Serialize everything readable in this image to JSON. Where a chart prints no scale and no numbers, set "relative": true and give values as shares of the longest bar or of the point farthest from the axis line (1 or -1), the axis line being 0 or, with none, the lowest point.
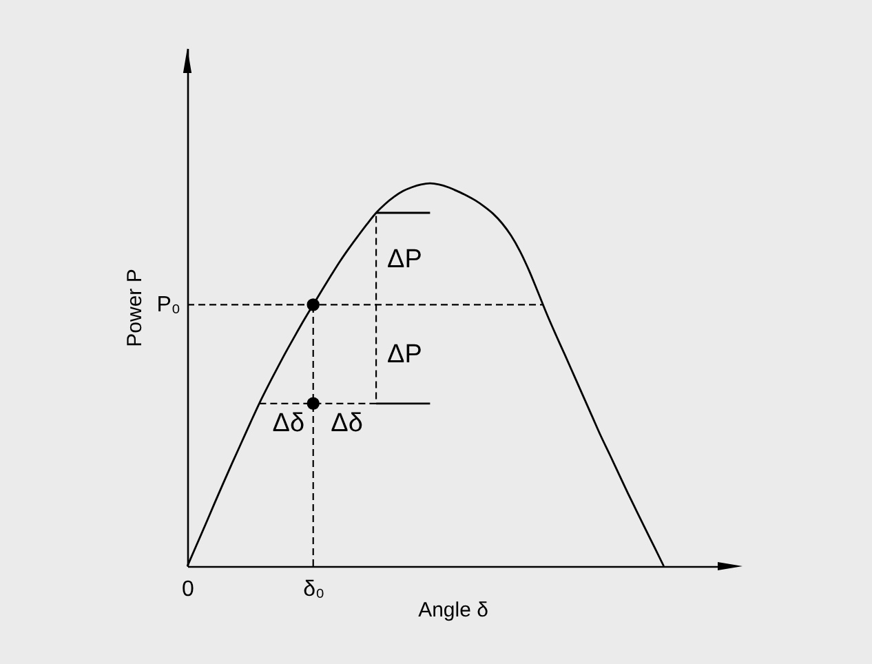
{
  "chart_data": {
    "type": "line",
    "xlabel": "Angle δ",
    "ylabel": "Power P",
    "relative": true,
    "categories": [
      "0",
      null,
      null,
      null,
      null,
      null,
      null,
      null,
      null,
      null,
      null,
      null,
      null,
      null,
      "δ₀",
      null,
      null,
      null,
      null,
      null,
      null,
      null,
      null,
      null,
      null,
      null,
      null,
      null,
      null,
      null,
      null,
      null,
      null,
      null,
      null,
      null,
      null,
      null,
      null,
      null,
      null,
      null,
      null,
      null,
      null,
      null,
      null,
      null,
      null,
      null,
      null,
      null,
      null,
      null,
      null,
      null,
      null,
      null,
      null,
      null
    ],
    "series": [
      {
        "color": "#000000",
        "values": [
          0,
          0.054,
          0.108,
          0.163,
          0.217,
          0.27,
          0.322,
          0.374,
          0.425,
          0.472,
          0.517,
          0.561,
          0.603,
          0.644,
          0.683,
          0.722,
          0.76,
          0.797,
          0.831,
          0.863,
          0.894,
          0.923,
          0.946,
          0.965,
          0.98,
          0.99,
          0.997,
          1,
          0.997,
          0.99,
          0.98,
          0.969,
          0.956,
          0.94,
          0.921,
          0.896,
          0.864,
          0.823,
          0.773,
          0.716,
          0.658,
          0.604,
          0.552,
          0.499,
          0.446,
          0.393,
          0.34,
          0.291,
          0.241,
          0.191,
          0.143,
          0.095,
          0.048,
          0,
          null,
          null,
          null,
          null,
          null,
          null
        ]
      },
      {
        "type": "step",
        "line_style": "dashed",
        "color": "#000000",
        "values": [
          null,
          null,
          null,
          null,
          null,
          null,
          null,
          null,
          0.425,
          0.425,
          0.425,
          0.425,
          0.425,
          0.425,
          0.425,
          0.425,
          0.425,
          0.425,
          0.425,
          0.425,
          0.425,
          0.923,
          null,
          null,
          null,
          null,
          null,
          null,
          null,
          null,
          null,
          null,
          null,
          null,
          null,
          null,
          null,
          null,
          null,
          null,
          null,
          null,
          null,
          null,
          null,
          null,
          null,
          null,
          null,
          null,
          null,
          null,
          null,
          null,
          null,
          null,
          null,
          null,
          null,
          null
        ]
      },
      {
        "type": "line",
        "color": "#000000",
        "values": [
          null,
          null,
          null,
          null,
          null,
          null,
          null,
          null,
          null,
          null,
          null,
          null,
          null,
          null,
          null,
          null,
          null,
          null,
          null,
          null,
          null,
          0.923,
          0.923,
          0.923,
          0.923,
          0.923,
          0.923,
          0.923,
          null,
          null,
          null,
          null,
          null,
          null,
          null,
          null,
          null,
          null,
          null,
          null,
          null,
          null,
          null,
          null,
          null,
          null,
          null,
          null,
          null,
          null,
          null,
          null,
          null,
          null,
          null,
          null,
          null,
          null,
          null,
          null
        ]
      },
      {
        "type": "line",
        "color": "#000000",
        "values": [
          null,
          null,
          null,
          null,
          null,
          null,
          null,
          null,
          null,
          null,
          null,
          null,
          null,
          null,
          null,
          null,
          null,
          null,
          null,
          null,
          null,
          0.425,
          0.425,
          0.425,
          0.425,
          0.425,
          0.425,
          0.425,
          null,
          null,
          null,
          null,
          null,
          null,
          null,
          null,
          null,
          null,
          null,
          null,
          null,
          null,
          null,
          null,
          null,
          null,
          null,
          null,
          null,
          null,
          null,
          null,
          null,
          null,
          null,
          null,
          null,
          null,
          null,
          null
        ]
      },
      {
        "type": "lollipop",
        "marker": "circle",
        "line_style": "dashed",
        "color": "#000000",
        "values": [
          null,
          null,
          null,
          null,
          null,
          null,
          null,
          null,
          null,
          null,
          null,
          null,
          null,
          null,
          0.683,
          null,
          null,
          null,
          null,
          null,
          null,
          null,
          null,
          null,
          null,
          null,
          null,
          null,
          null,
          null,
          null,
          null,
          null,
          null,
          null,
          null,
          null,
          null,
          null,
          null,
          null,
          null,
          null,
          null,
          null,
          null,
          null,
          null,
          null,
          null,
          null,
          null,
          null,
          null,
          null,
          null,
          null,
          null,
          null,
          null
        ]
      },
      {
        "type": "scatter",
        "marker": "circle",
        "color": "#000000",
        "values": [
          null,
          null,
          null,
          null,
          null,
          null,
          null,
          null,
          null,
          null,
          null,
          null,
          null,
          null,
          0.425,
          null,
          null,
          null,
          null,
          null,
          null,
          null,
          null,
          null,
          null,
          null,
          null,
          null,
          null,
          null,
          null,
          null,
          null,
          null,
          null,
          null,
          null,
          null,
          null,
          null,
          null,
          null,
          null,
          null,
          null,
          null,
          null,
          null,
          null,
          null,
          null,
          null,
          null,
          null,
          null,
          null,
          null,
          null,
          null,
          null
        ]
      }
    ],
    "ref_lines": [
      {
        "axis": "y",
        "value": 0.683,
        "label": "P₀",
        "color": "#000000",
        "line_style": "dashed"
      }
    ],
    "annotations": [
      "ΔP",
      "ΔP",
      {
        "text": "Δδ",
        "y": 0.425
      },
      {
        "text": "Δδ",
        "y": 0.425
      }
    ]
  }
}
